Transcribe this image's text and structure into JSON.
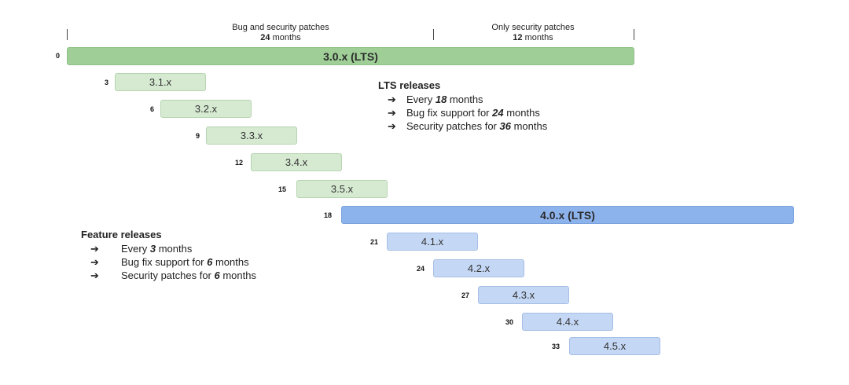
{
  "header": {
    "bug_phase": {
      "title": "Bug and security patches",
      "value": "24",
      "unit": "months"
    },
    "security_phase": {
      "title": "Only security patches",
      "value": "12",
      "unit": "months"
    }
  },
  "lts_bars": [
    {
      "month": "0",
      "label": "3.0.x (LTS)"
    },
    {
      "month": "18",
      "label": "4.0.x (LTS)"
    }
  ],
  "feature_bars": [
    {
      "month": "3",
      "label": "3.1.x"
    },
    {
      "month": "6",
      "label": "3.2.x"
    },
    {
      "month": "9",
      "label": "3.3.x"
    },
    {
      "month": "12",
      "label": "3.4.x"
    },
    {
      "month": "15",
      "label": "3.5.x"
    },
    {
      "month": "21",
      "label": "4.1.x"
    },
    {
      "month": "24",
      "label": "4.2.x"
    },
    {
      "month": "27",
      "label": "4.3.x"
    },
    {
      "month": "30",
      "label": "4.4.x"
    },
    {
      "month": "33",
      "label": "4.5.x"
    }
  ],
  "lts_legend": {
    "title": "LTS releases",
    "arrow": "➔",
    "items": [
      {
        "pre": "Every ",
        "bold": "18",
        "post": " months"
      },
      {
        "pre": "Bug fix support for ",
        "bold": "24",
        "post": " months"
      },
      {
        "pre": "Security patches for ",
        "bold": "36",
        "post": " months"
      }
    ]
  },
  "feature_legend": {
    "title": "Feature releases",
    "arrow": "➔",
    "items": [
      {
        "pre": "Every ",
        "bold": "3",
        "post": " months"
      },
      {
        "pre": "Bug fix support for ",
        "bold": "6",
        "post": " months"
      },
      {
        "pre": "Security patches for ",
        "bold": "6",
        "post": " months"
      }
    ]
  }
}
